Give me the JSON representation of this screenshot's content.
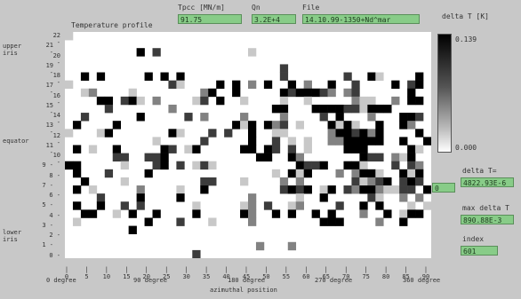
{
  "header": {
    "title": "Temperature profile",
    "tpcc_label": "Tpcc [MN/m]",
    "tpcc_value": "91.75",
    "qn_label": "Qn",
    "qn_value": "3.2E+4",
    "file_label": "File",
    "file_value": "14.10.99-1350+Nd^mar",
    "legend_label": "delta T [K]"
  },
  "y_side_labels": {
    "upper": "upper\niris",
    "equator": "equator",
    "lower": "lower\niris"
  },
  "x_side_labels": {
    "deg0": "0 degree",
    "deg90": "90 degree",
    "deg180": "180 degree",
    "deg270": "270 degree",
    "deg360": "360 degree",
    "axis": "azimuthal position"
  },
  "colorbar": {
    "max": "0.139",
    "min": "0.000"
  },
  "right_panel": {
    "small_value": "0",
    "delta_t_label": "delta T=",
    "delta_t_value": "4822.93E-6",
    "max_delta_label": "max delta T",
    "max_delta_value": "890.88E-3",
    "index_label": "index",
    "index_value": "601"
  },
  "chart_data": {
    "type": "heatmap",
    "x_ticks": [
      "0",
      "5",
      "10",
      "15",
      "20",
      "25",
      "30",
      "35",
      "40",
      "45",
      "50",
      "55",
      "60",
      "65",
      "70",
      "75",
      "80",
      "85",
      "90"
    ],
    "y_ticks": [
      "22",
      "20",
      "18",
      "16",
      "14",
      "12",
      "10",
      "8",
      "6",
      "4",
      "2",
      "0"
    ],
    "y_ticks_left": [
      "21",
      "19",
      "17",
      "15",
      "13",
      "11",
      "9",
      "7",
      "5",
      "3",
      "1"
    ],
    "legend_range": [
      0.0,
      0.139
    ],
    "colors": {
      "max": "#000000",
      "min": "#ffffff",
      "field": "#88cc88",
      "background": "#c8c8c8"
    }
  }
}
